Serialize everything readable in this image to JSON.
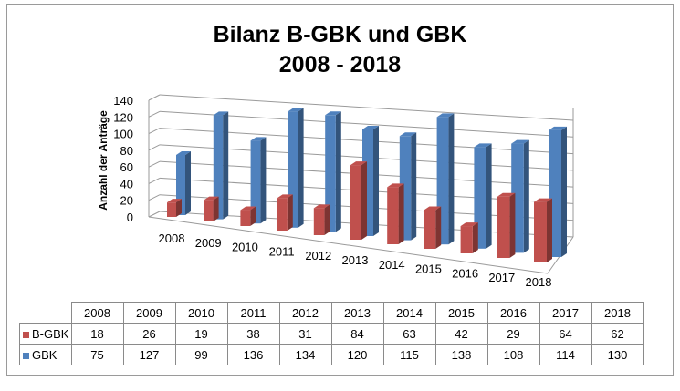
{
  "chart_data": {
    "type": "bar",
    "title": "Bilanz B-GBK und GBK",
    "subtitle": "2008 - 2018",
    "ylabel": "Anzahl der Anträge",
    "xlabel": "",
    "ylim": [
      0,
      140
    ],
    "yticks": [
      "0",
      "20",
      "40",
      "60",
      "80",
      "100",
      "120",
      "140"
    ],
    "categories": [
      "2008",
      "2009",
      "2010",
      "2011",
      "2012",
      "2013",
      "2014",
      "2015",
      "2016",
      "2017",
      "2018"
    ],
    "series": [
      {
        "name": "B-GBK",
        "color": "#c0504d",
        "values": [
          18,
          26,
          19,
          38,
          31,
          84,
          63,
          42,
          29,
          64,
          62
        ]
      },
      {
        "name": "GBK",
        "color": "#4f81bd",
        "values": [
          75,
          127,
          99,
          136,
          134,
          120,
          115,
          138,
          108,
          114,
          130
        ]
      }
    ],
    "grid": true,
    "legend": "data-table"
  }
}
